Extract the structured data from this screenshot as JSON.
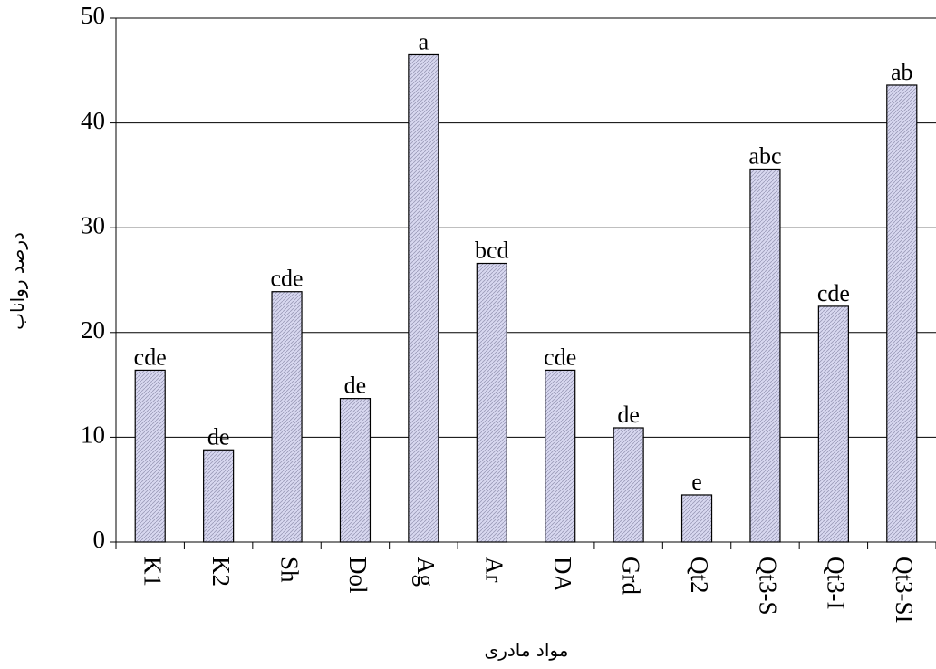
{
  "chart_data": {
    "type": "bar",
    "x_label": "مواد مادری",
    "y_label": "درصد رواناب",
    "categories": [
      "K1",
      "K2",
      "Sh",
      "Dol",
      "Ag",
      "Ar",
      "DA",
      "Grd",
      "Qt2",
      "Qt3-S",
      "Qt3-I",
      "Qt3-SI"
    ],
    "values": [
      16.4,
      8.8,
      23.9,
      13.7,
      46.5,
      26.6,
      16.4,
      10.9,
      4.5,
      35.6,
      22.5,
      43.6
    ],
    "letters": [
      "cde",
      "de",
      "cde",
      "de",
      "a",
      "bcd",
      "cde",
      "de",
      "e",
      "abc",
      "cde",
      "ab"
    ],
    "color": "#d8d8f0",
    "ylim": [
      0,
      50
    ],
    "yticks": [
      0,
      10,
      20,
      30,
      40,
      50
    ],
    "grid": true
  }
}
